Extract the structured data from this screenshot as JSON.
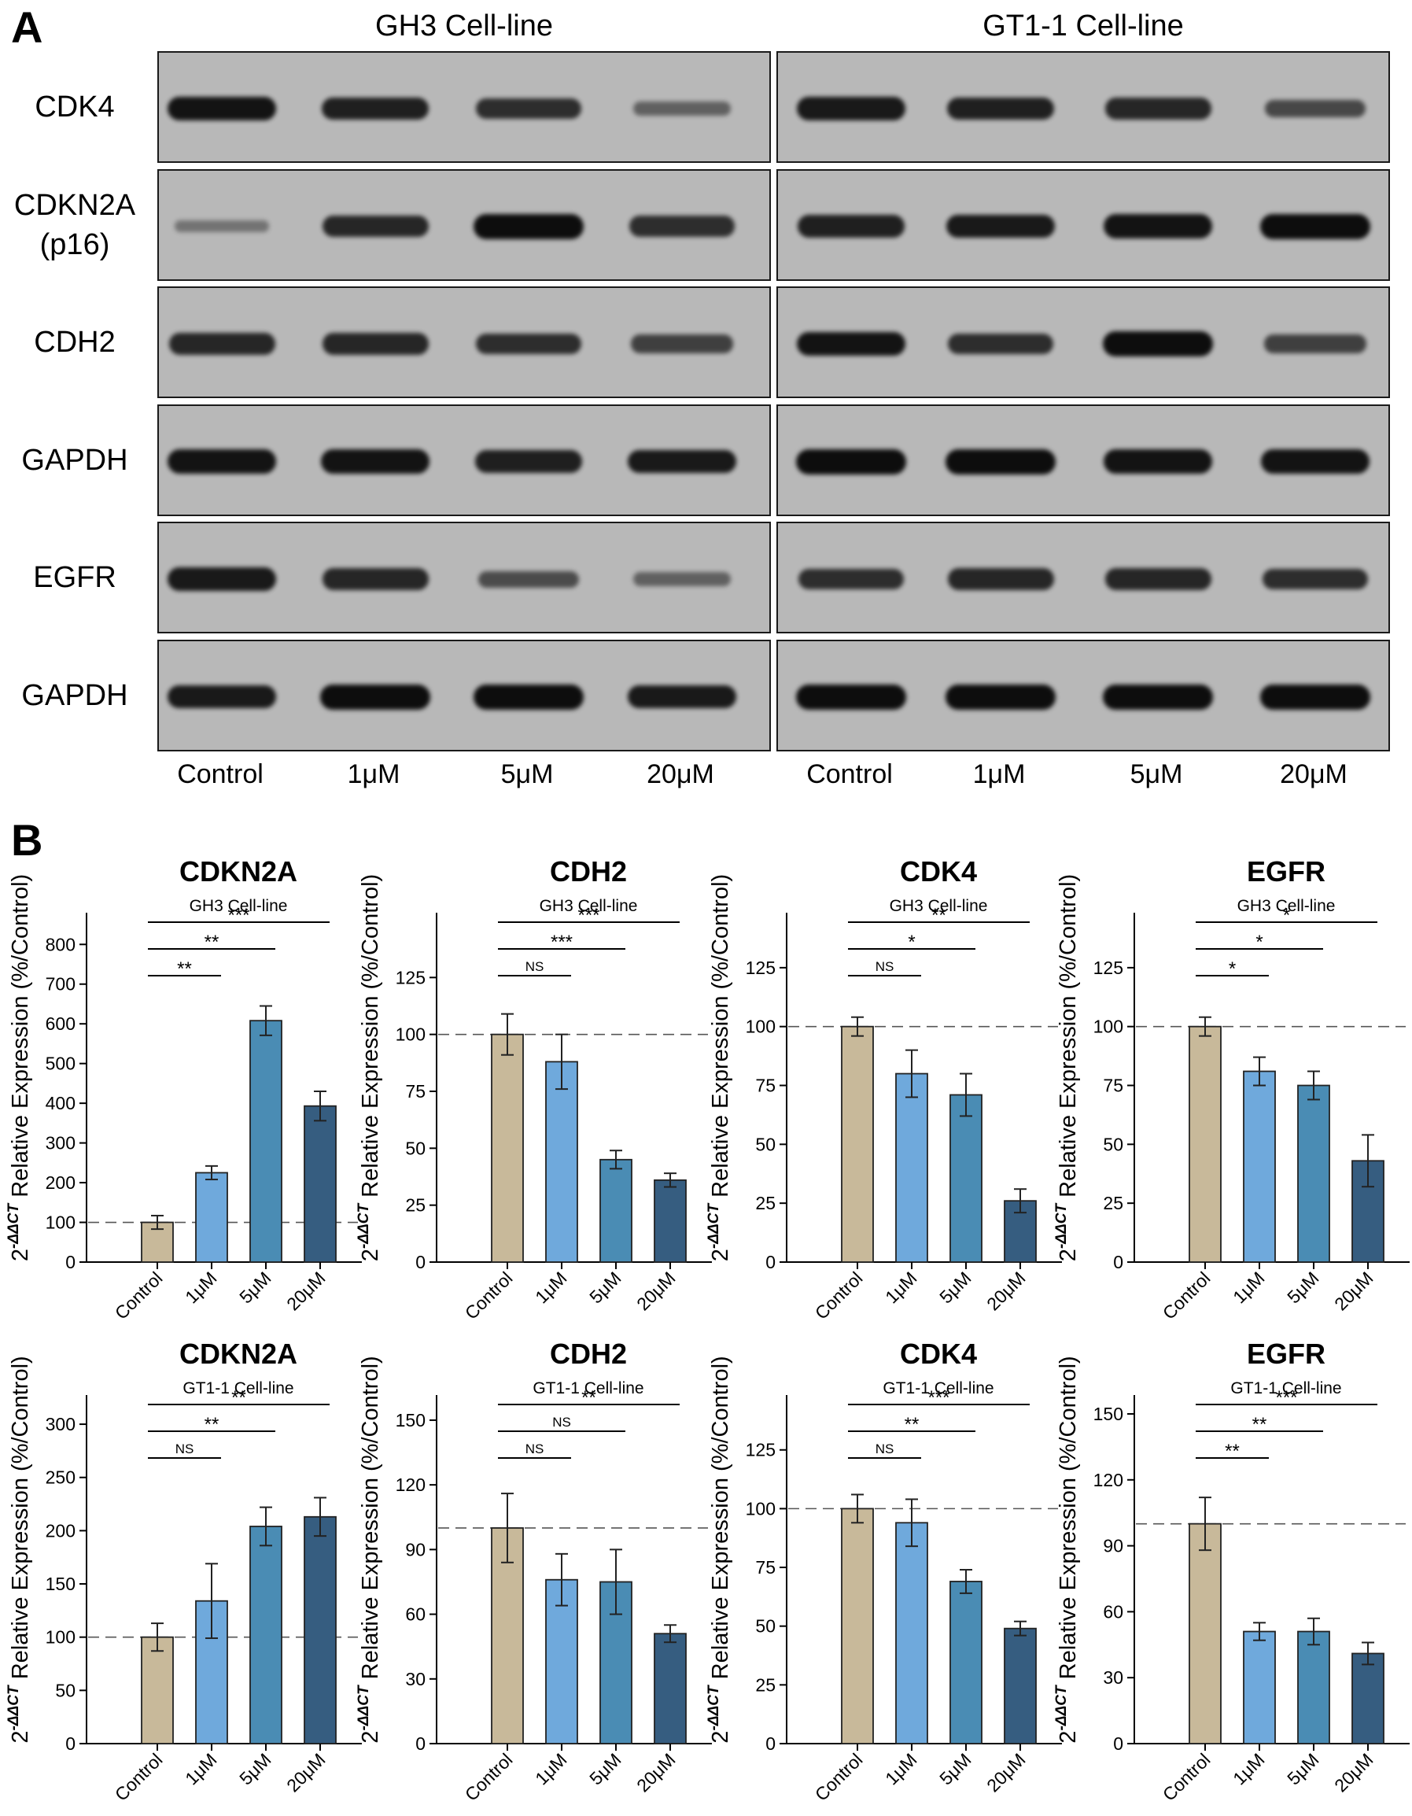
{
  "panel_a": {
    "letter": "A",
    "cell_lines": [
      "GH3 Cell-line",
      "GT1-1 Cell-line"
    ],
    "rows": [
      {
        "label": "CDK4"
      },
      {
        "label": "CDKN2A\n(p16)"
      },
      {
        "label": "CDH2"
      },
      {
        "label": "GAPDH"
      },
      {
        "label": "EGFR"
      },
      {
        "label": "GAPDH"
      }
    ],
    "lanes": [
      "Control",
      "1μM",
      "5μM",
      "20μM",
      "Control",
      "1μM",
      "5μM",
      "20μM"
    ],
    "band_intensity": [
      [
        0.95,
        0.85,
        0.75,
        0.35,
        0.9,
        0.85,
        0.8,
        0.55
      ],
      [
        0.2,
        0.8,
        1.0,
        0.75,
        0.85,
        0.9,
        0.95,
        1.0
      ],
      [
        0.8,
        0.8,
        0.75,
        0.6,
        0.95,
        0.75,
        1.0,
        0.6
      ],
      [
        0.95,
        0.95,
        0.85,
        0.9,
        1.0,
        1.0,
        0.95,
        0.95
      ],
      [
        0.9,
        0.8,
        0.5,
        0.35,
        0.75,
        0.8,
        0.8,
        0.75
      ],
      [
        0.9,
        1.0,
        1.0,
        0.9,
        1.0,
        1.0,
        1.0,
        1.0
      ]
    ]
  },
  "panel_b": {
    "letter": "B",
    "ylabel_base": "2",
    "ylabel_sup": "-ΔΔCT",
    "ylabel_rest": " Relative Expression (%/Control)"
  },
  "colors": {
    "control": "#c8b99a",
    "1uM": "#6fa9dc",
    "5uM": "#4a8cb4",
    "20uM": "#365d80"
  },
  "chart_data": [
    {
      "type": "bar",
      "title": "CDKN2A",
      "subtitle": "GH3 Cell-line",
      "categories": [
        "Control",
        "1μM",
        "5μM",
        "20μM"
      ],
      "values": [
        100,
        225,
        608,
        393
      ],
      "errors": [
        17,
        17,
        37,
        37
      ],
      "ylim": [
        0,
        860
      ],
      "yticks": [
        0,
        100,
        200,
        300,
        400,
        500,
        600,
        700,
        800
      ],
      "ylabel": "2-ΔΔCT Relative Expression (%/Control)",
      "sig": [
        {
          "to": 1,
          "label": "**"
        },
        {
          "to": 2,
          "label": "**"
        },
        {
          "to": 3,
          "label": "***"
        }
      ]
    },
    {
      "type": "bar",
      "title": "CDH2",
      "subtitle": "GH3 Cell-line",
      "categories": [
        "Control",
        "1μM",
        "5μM",
        "20μM"
      ],
      "values": [
        100,
        88,
        45,
        36
      ],
      "errors": [
        9,
        12,
        4,
        3
      ],
      "ylim": [
        0,
        150
      ],
      "yticks": [
        0,
        25,
        50,
        75,
        100,
        125
      ],
      "ylabel": "2-ΔΔCT Relative Expression (%/Control)",
      "sig": [
        {
          "to": 1,
          "label": "NS"
        },
        {
          "to": 2,
          "label": "***"
        },
        {
          "to": 3,
          "label": "***"
        }
      ]
    },
    {
      "type": "bar",
      "title": "CDK4",
      "subtitle": "GH3 Cell-line",
      "categories": [
        "Control",
        "1μM",
        "5μM",
        "20μM"
      ],
      "values": [
        100,
        80,
        71,
        26
      ],
      "errors": [
        4,
        10,
        9,
        5
      ],
      "ylim": [
        0,
        145
      ],
      "yticks": [
        0,
        25,
        50,
        75,
        100,
        125
      ],
      "ylabel": "2-ΔΔCT Relative Expression (%/Control)",
      "sig": [
        {
          "to": 1,
          "label": "NS"
        },
        {
          "to": 2,
          "label": "*"
        },
        {
          "to": 3,
          "label": "**"
        }
      ]
    },
    {
      "type": "bar",
      "title": "EGFR",
      "subtitle": "GH3 Cell-line",
      "categories": [
        "Control",
        "1μM",
        "5μM",
        "20μM"
      ],
      "values": [
        100,
        81,
        75,
        43
      ],
      "errors": [
        4,
        6,
        6,
        11
      ],
      "ylim": [
        0,
        145
      ],
      "yticks": [
        0,
        25,
        50,
        75,
        100,
        125
      ],
      "ylabel": "2-ΔΔCT Relative Expression (%/Control)",
      "sig": [
        {
          "to": 1,
          "label": "*"
        },
        {
          "to": 2,
          "label": "*"
        },
        {
          "to": 3,
          "label": "*"
        }
      ]
    },
    {
      "type": "bar",
      "title": "CDKN2A",
      "subtitle": "GT1-1 Cell-line",
      "categories": [
        "Control",
        "1μM",
        "5μM",
        "20μM"
      ],
      "values": [
        100,
        134,
        204,
        213
      ],
      "errors": [
        13,
        35,
        18,
        18
      ],
      "ylim": [
        0,
        320
      ],
      "yticks": [
        0,
        50,
        100,
        150,
        200,
        250,
        300
      ],
      "ylabel": "2-ΔΔCT Relative Expression (%/Control)",
      "sig": [
        {
          "to": 1,
          "label": "NS"
        },
        {
          "to": 2,
          "label": "**"
        },
        {
          "to": 3,
          "label": "**"
        }
      ]
    },
    {
      "type": "bar",
      "title": "CDH2",
      "subtitle": "GT1-1 Cell-line",
      "categories": [
        "Control",
        "1μM",
        "5μM",
        "20μM"
      ],
      "values": [
        100,
        76,
        75,
        51
      ],
      "errors": [
        16,
        12,
        15,
        4
      ],
      "ylim": [
        0,
        158
      ],
      "yticks": [
        0,
        30,
        60,
        90,
        120,
        150
      ],
      "ylabel": "2-ΔΔCT Relative Expression (%/Control)",
      "sig": [
        {
          "to": 1,
          "label": "NS"
        },
        {
          "to": 2,
          "label": "NS"
        },
        {
          "to": 3,
          "label": "**"
        }
      ]
    },
    {
      "type": "bar",
      "title": "CDK4",
      "subtitle": "GT1-1 Cell-line",
      "categories": [
        "Control",
        "1μM",
        "5μM",
        "20μM"
      ],
      "values": [
        100,
        94,
        69,
        49
      ],
      "errors": [
        6,
        10,
        5,
        3
      ],
      "ylim": [
        0,
        145
      ],
      "yticks": [
        0,
        25,
        50,
        75,
        100,
        125
      ],
      "ylabel": "2-ΔΔCT Relative Expression (%/Control)",
      "sig": [
        {
          "to": 1,
          "label": "NS"
        },
        {
          "to": 2,
          "label": "**"
        },
        {
          "to": 3,
          "label": "***"
        }
      ]
    },
    {
      "type": "bar",
      "title": "EGFR",
      "subtitle": "GT1-1 Cell-line",
      "categories": [
        "Control",
        "1μM",
        "5μM",
        "20μM"
      ],
      "values": [
        100,
        51,
        51,
        41
      ],
      "errors": [
        12,
        4,
        6,
        5
      ],
      "ylim": [
        0,
        155
      ],
      "yticks": [
        0,
        30,
        60,
        90,
        120,
        150
      ],
      "ylabel": "2-ΔΔCT Relative Expression (%/Control)",
      "sig": [
        {
          "to": 1,
          "label": "**"
        },
        {
          "to": 2,
          "label": "**"
        },
        {
          "to": 3,
          "label": "***"
        }
      ]
    }
  ]
}
